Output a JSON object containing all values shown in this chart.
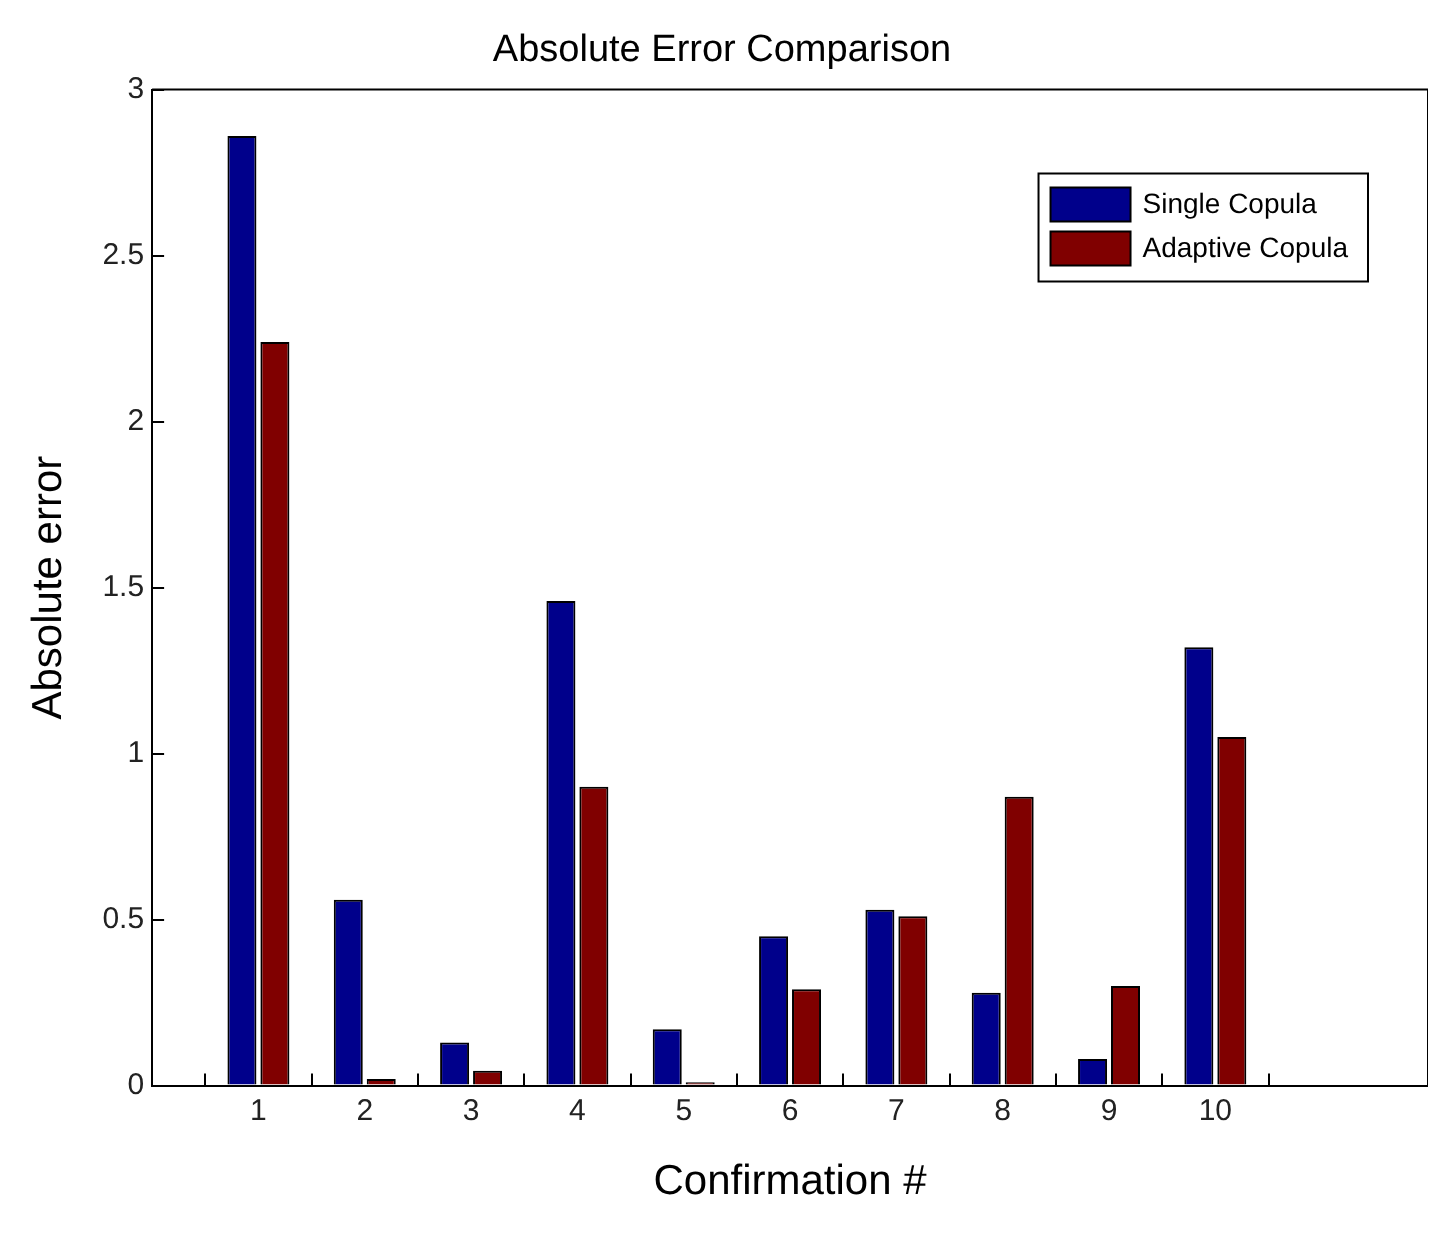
{
  "chart_data": {
    "type": "bar",
    "title": "Absolute Error Comparison",
    "xlabel": "Confirmation #",
    "ylabel": "Absolute error",
    "x": [
      1,
      2,
      3,
      4,
      5,
      6,
      7,
      8,
      9,
      10
    ],
    "series": [
      {
        "name": "Single Copula",
        "color": "#00008b",
        "values": [
          2.86,
          0.56,
          0.13,
          1.46,
          0.17,
          0.45,
          0.53,
          0.28,
          0.08,
          1.32
        ]
      },
      {
        "name": "Adaptive Copula",
        "color": "#800000",
        "values": [
          2.24,
          0.02,
          0.045,
          0.9,
          0.01,
          0.29,
          0.51,
          0.87,
          0.3,
          1.05
        ]
      }
    ],
    "xlim": [
      0,
      12
    ],
    "xticks": [
      1,
      2,
      3,
      4,
      5,
      6,
      7,
      8,
      9,
      10
    ],
    "ylim": [
      0,
      3
    ],
    "yticks": [
      0,
      0.5,
      1,
      1.5,
      2,
      2.5,
      3
    ],
    "grid": false,
    "legend": "top right"
  }
}
